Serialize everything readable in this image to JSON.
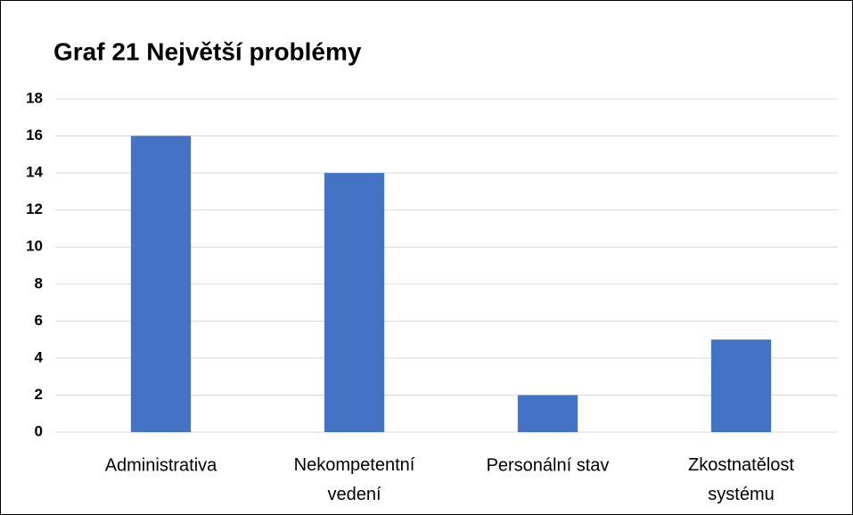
{
  "chart_data": {
    "type": "bar",
    "title": "Graf 21 Největší problémy",
    "categories": [
      "Administrativa",
      "Nekompetentní vedení",
      "Personální stav",
      "Zkostnatělost systému"
    ],
    "values": [
      16,
      14,
      2,
      5
    ],
    "color": "#4472c4",
    "ylim": [
      0,
      18
    ],
    "yticks": [
      0,
      2,
      4,
      6,
      8,
      10,
      12,
      14,
      16,
      18
    ],
    "grid": true
  }
}
